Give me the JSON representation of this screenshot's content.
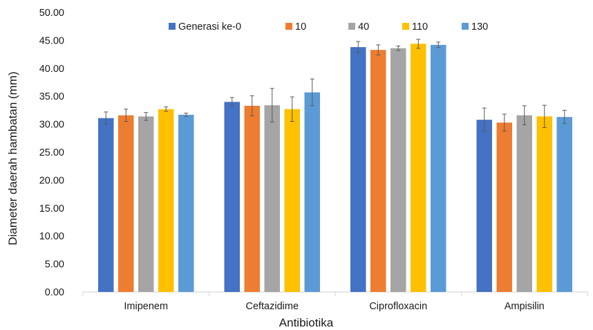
{
  "chart_data": {
    "type": "bar",
    "title": "",
    "xlabel": "Antibiotika",
    "ylabel": "Diameter daerah hambatan (mm)",
    "ylim": [
      0,
      50
    ],
    "y_ticks": [
      "0.00",
      "5.00",
      "10.00",
      "15.00",
      "20.00",
      "25.00",
      "30.00",
      "35.00",
      "40.00",
      "45.00",
      "50.00"
    ],
    "grid": false,
    "legend_position": "top",
    "categories": [
      "Imipenem",
      "Ceftazidime",
      "Ciprofloxacin",
      "Ampisilin"
    ],
    "series": [
      {
        "name": "Generasi ke-0",
        "color": "#4472C4",
        "values": [
          31.1,
          34.0,
          43.8,
          30.8
        ],
        "errors": [
          1.1,
          0.8,
          1.0,
          2.1
        ]
      },
      {
        "name": "10",
        "color": "#ED7D31",
        "values": [
          31.6,
          33.3,
          43.3,
          30.3
        ],
        "errors": [
          1.1,
          1.8,
          0.9,
          1.5
        ]
      },
      {
        "name": "40",
        "color": "#A5A5A5",
        "values": [
          31.4,
          33.4,
          43.6,
          31.6
        ],
        "errors": [
          0.7,
          3.0,
          0.4,
          1.7
        ]
      },
      {
        "name": "110",
        "color": "#FFC000",
        "values": [
          32.7,
          32.7,
          44.4,
          31.4
        ],
        "errors": [
          0.4,
          2.2,
          0.8,
          2.0
        ]
      },
      {
        "name": "130",
        "color": "#5B9BD5",
        "values": [
          31.7,
          35.7,
          44.2,
          31.3
        ],
        "errors": [
          0.3,
          2.4,
          0.5,
          1.2
        ]
      }
    ]
  }
}
